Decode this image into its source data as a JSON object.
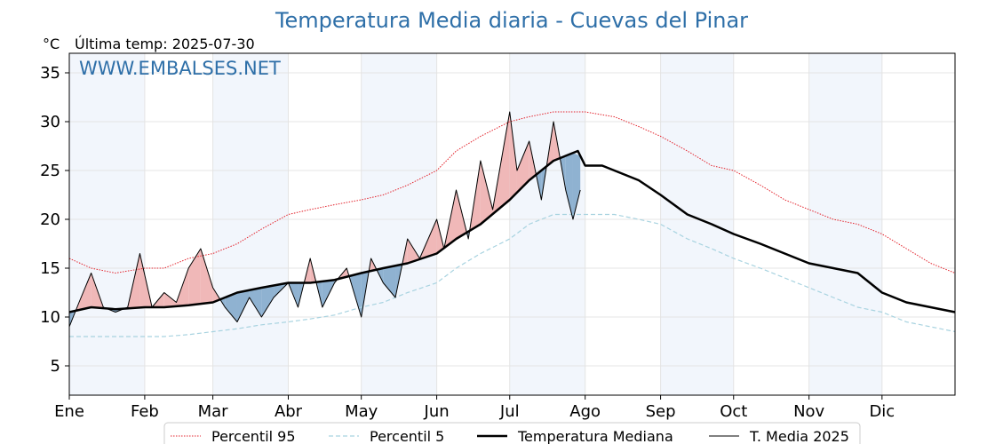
{
  "colors": {
    "title": "#2e6fa8",
    "p95": "#e3232c",
    "p5": "#a8d3e0",
    "median": "#000000",
    "actual": "#000000",
    "fill_above": "#f0b8b8",
    "fill_below": "#8fb2d1",
    "band": "#f2f6fc"
  },
  "chart_data": {
    "type": "line",
    "title": "Temperatura Media diaria - Cuevas del Pinar",
    "unit": "°C",
    "subtitle": "Última temp: 2025-07-30",
    "watermark": "WWW.EMBALSES.NET",
    "x_axis": "day of year (1-365)",
    "month_labels": [
      "Ene",
      "Feb",
      "Mar",
      "Abr",
      "May",
      "Jun",
      "Jul",
      "Ago",
      "Sep",
      "Oct",
      "Nov",
      "Dic"
    ],
    "month_start_days": [
      1,
      32,
      60,
      91,
      121,
      152,
      182,
      213,
      244,
      274,
      305,
      335
    ],
    "ylim": [
      2,
      37
    ],
    "yticks": [
      5,
      10,
      15,
      20,
      25,
      30,
      35
    ],
    "grid": true,
    "legend_position": "bottom",
    "series": [
      {
        "name": "Percentil 95",
        "style": "dotted-red",
        "x": [
          1,
          10,
          20,
          32,
          40,
          50,
          60,
          70,
          80,
          91,
          100,
          110,
          121,
          130,
          140,
          152,
          160,
          170,
          182,
          190,
          200,
          213,
          225,
          235,
          244,
          255,
          265,
          274,
          285,
          295,
          305,
          315,
          325,
          335,
          345,
          355,
          365
        ],
        "y": [
          16,
          15,
          14.5,
          15,
          15,
          16,
          16.5,
          17.5,
          19,
          20.5,
          21,
          21.5,
          22,
          22.5,
          23.5,
          25,
          27,
          28.5,
          30,
          30.5,
          31,
          31,
          30.5,
          29.5,
          28.5,
          27,
          25.5,
          25,
          23.5,
          22,
          21,
          20,
          19.5,
          18.5,
          17,
          15.5,
          14.5
        ]
      },
      {
        "name": "Percentil 5",
        "style": "dashed-lightblue",
        "x": [
          1,
          10,
          20,
          32,
          40,
          50,
          60,
          70,
          80,
          91,
          100,
          110,
          121,
          130,
          140,
          152,
          160,
          170,
          182,
          190,
          200,
          213,
          225,
          235,
          244,
          255,
          265,
          274,
          285,
          295,
          305,
          315,
          325,
          335,
          345,
          355,
          365
        ],
        "y": [
          8,
          8,
          8,
          8,
          8,
          8.2,
          8.5,
          8.8,
          9.2,
          9.5,
          9.8,
          10.2,
          11,
          11.5,
          12.5,
          13.5,
          15,
          16.5,
          18,
          19.5,
          20.5,
          20.5,
          20.5,
          20,
          19.5,
          18,
          17,
          16,
          15,
          14,
          13,
          12,
          11,
          10.5,
          9.5,
          9,
          8.5
        ]
      },
      {
        "name": "Temperatura Mediana",
        "style": "thick-black",
        "x": [
          1,
          10,
          20,
          32,
          40,
          50,
          60,
          70,
          80,
          91,
          100,
          110,
          121,
          130,
          140,
          152,
          160,
          170,
          182,
          190,
          200,
          210,
          213,
          220,
          230,
          235,
          244,
          255,
          265,
          274,
          285,
          295,
          305,
          315,
          325,
          335,
          345,
          355,
          365
        ],
        "y": [
          10.5,
          11,
          10.8,
          11,
          11,
          11.2,
          11.5,
          12.5,
          13,
          13.5,
          13.5,
          13.8,
          14.5,
          15,
          15.5,
          16.5,
          18,
          19.5,
          22,
          24,
          26,
          27,
          25.5,
          25.5,
          24.5,
          24,
          22.5,
          20.5,
          19.5,
          18.5,
          17.5,
          16.5,
          15.5,
          15,
          14.5,
          12.5,
          11.5,
          11,
          10.5
        ]
      },
      {
        "name": "T. Media 2025",
        "style": "thin-black",
        "x": [
          1,
          5,
          10,
          15,
          20,
          25,
          30,
          35,
          40,
          45,
          50,
          55,
          60,
          65,
          70,
          75,
          80,
          85,
          91,
          95,
          100,
          105,
          110,
          115,
          121,
          125,
          130,
          135,
          140,
          145,
          152,
          155,
          160,
          165,
          170,
          175,
          182,
          185,
          190,
          195,
          200,
          205,
          208,
          211
        ],
        "y": [
          9,
          11.5,
          14.5,
          11,
          10.5,
          11,
          16.5,
          11,
          12.5,
          11.5,
          15,
          17,
          13,
          11,
          9.5,
          12,
          10,
          12,
          13.5,
          11,
          16,
          11,
          13.5,
          15,
          10,
          16,
          13.5,
          12,
          18,
          16,
          20,
          17,
          23,
          18,
          26,
          21,
          31,
          25,
          28,
          22,
          30,
          23,
          20,
          23
        ]
      }
    ]
  }
}
